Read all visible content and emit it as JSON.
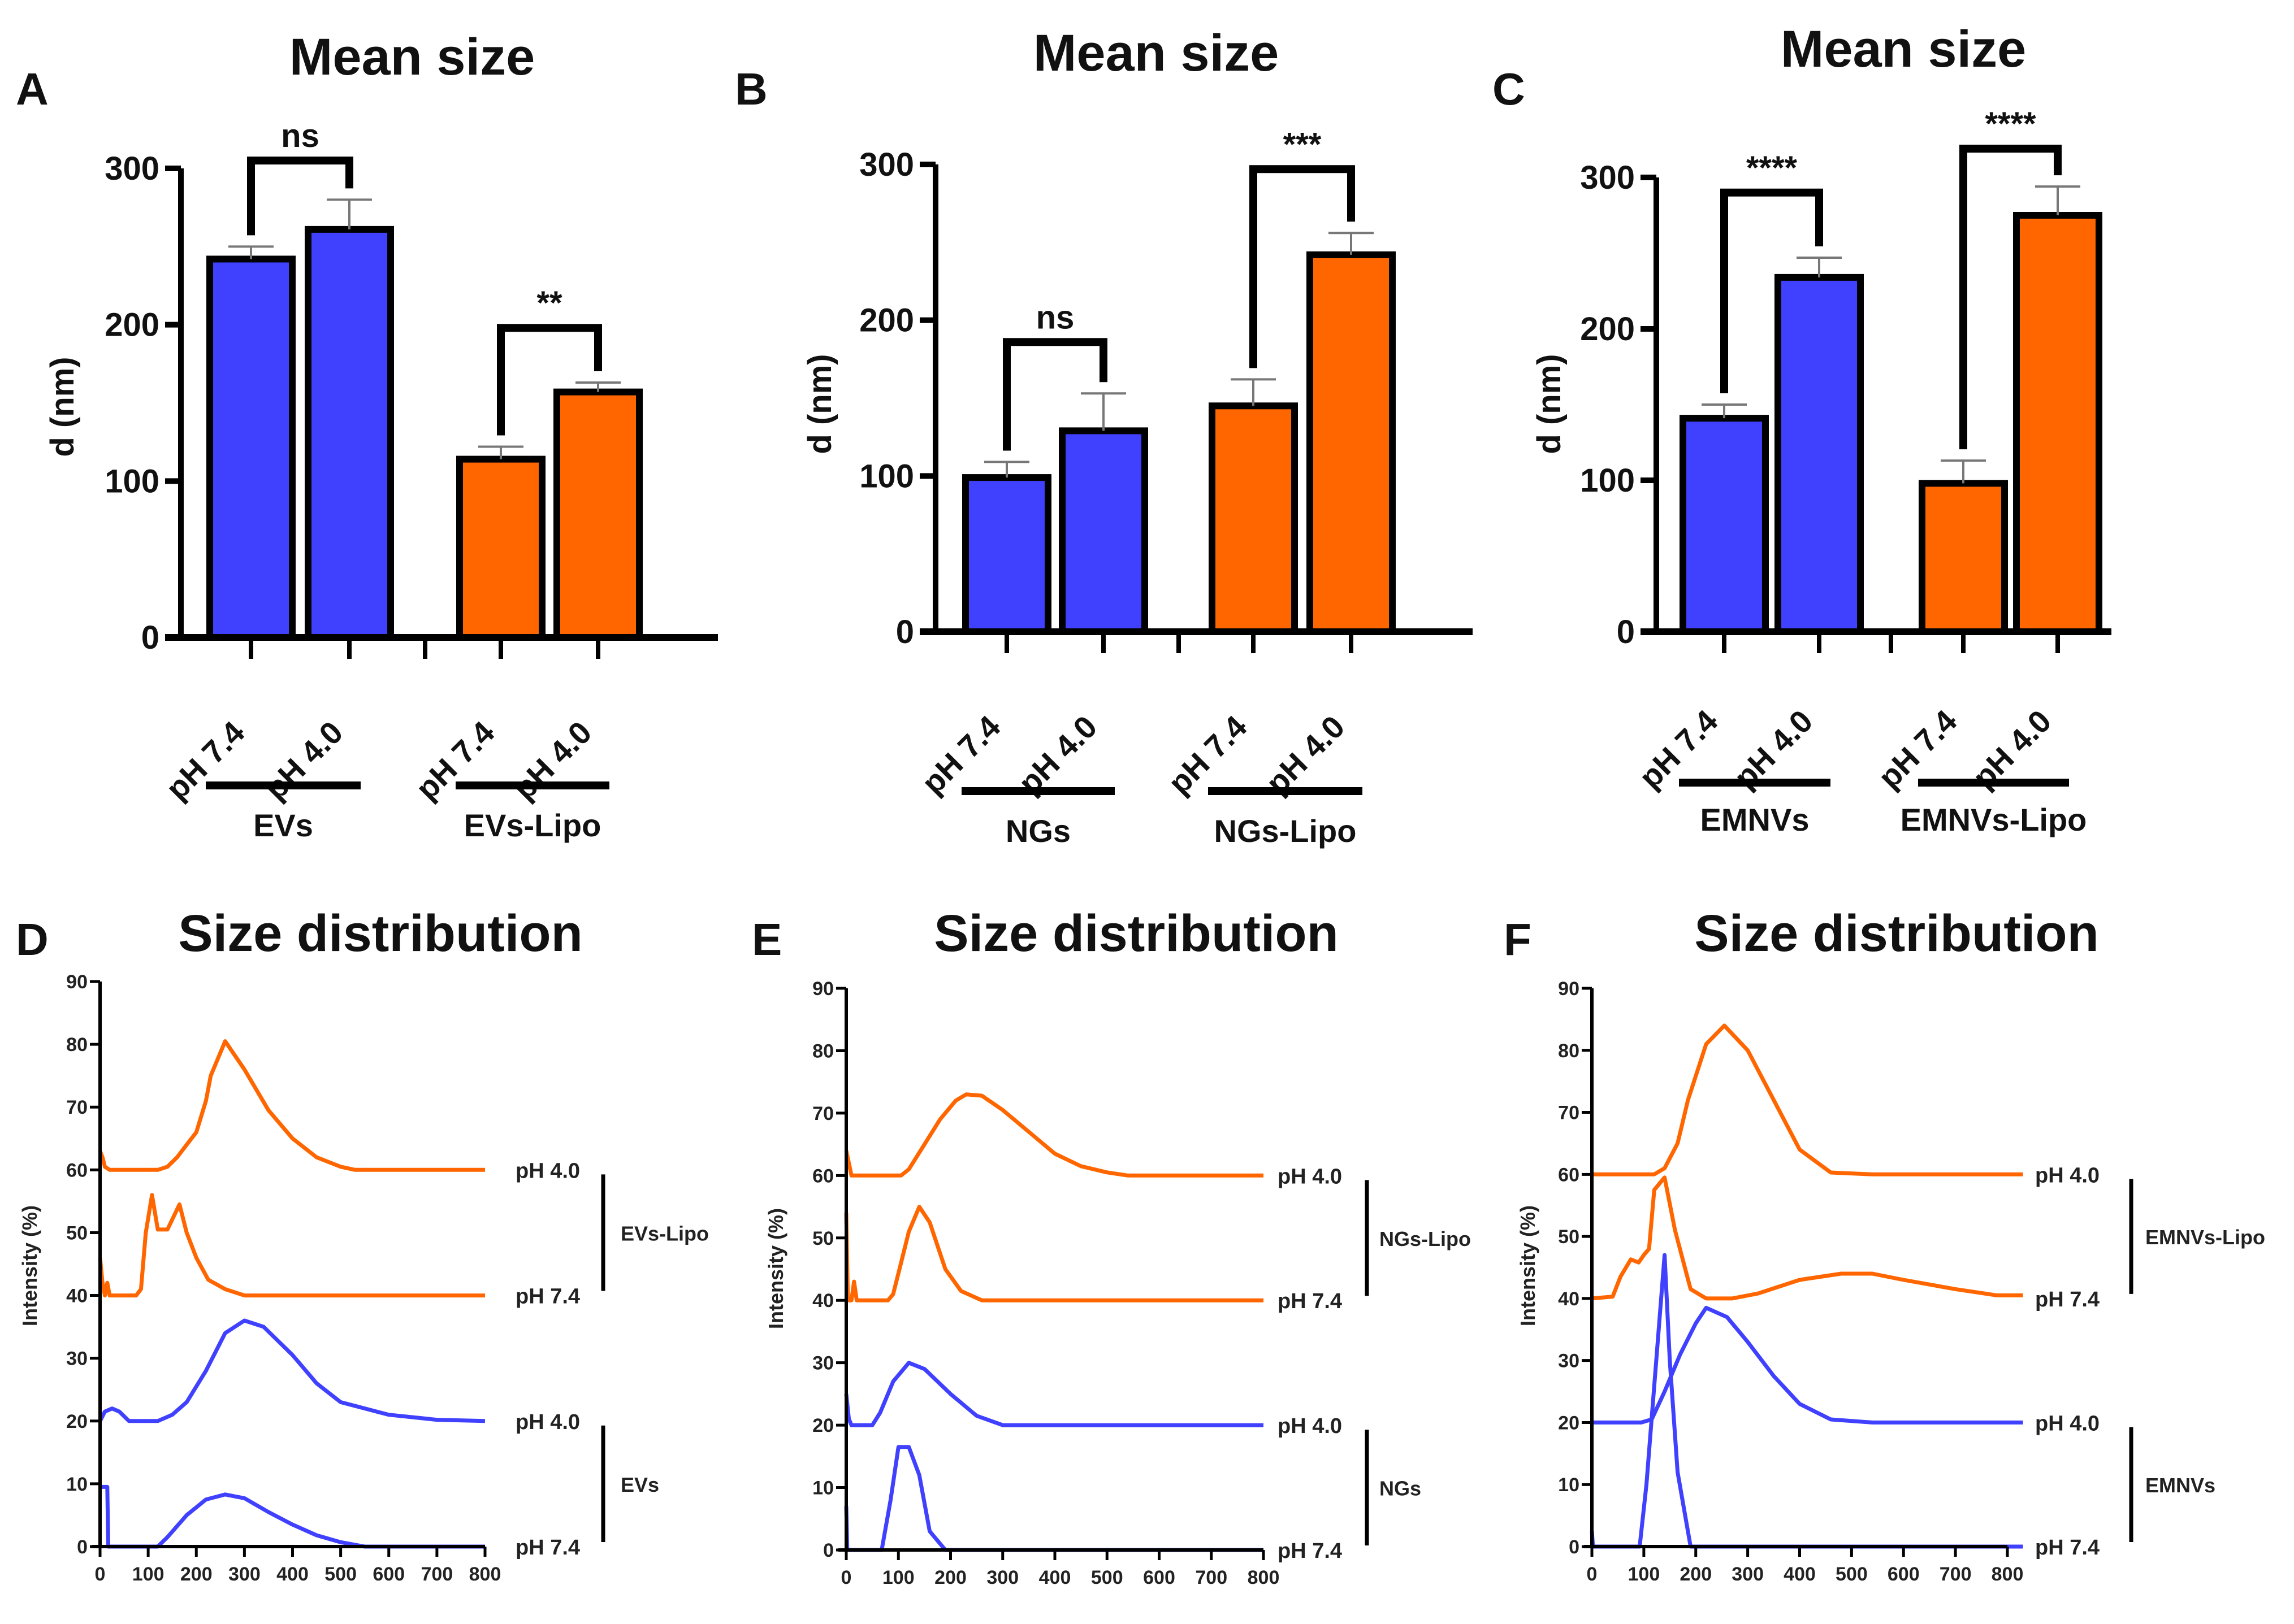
{
  "colors": {
    "blue": "#4040FF",
    "orange": "#FF6600",
    "axis": "#000000",
    "error": "#777777"
  },
  "chart_data": [
    {
      "panel": "A",
      "type": "bar",
      "title": "Mean size",
      "xlabel": "",
      "ylabel": "d (nm)",
      "ylim": [
        0,
        300
      ],
      "yticks": [
        0,
        100,
        200,
        300
      ],
      "categories": [
        "pH 7.4",
        "pH 4.0",
        "pH 7.4",
        "pH 4.0"
      ],
      "groups": [
        {
          "name": "EVs",
          "color": "blue",
          "bars": [
            {
              "label": "pH 7.4",
              "value": 242,
              "error": 8
            },
            {
              "label": "pH 4.0",
              "value": 261,
              "error": 19
            }
          ],
          "significance": {
            "label": "ns",
            "level": 305
          }
        },
        {
          "name": "EVs-Lipo",
          "color": "orange",
          "bars": [
            {
              "label": "pH 7.4",
              "value": 114,
              "error": 8
            },
            {
              "label": "pH 4.0",
              "value": 157,
              "error": 6
            }
          ],
          "significance": {
            "label": "**",
            "level": 198
          }
        }
      ]
    },
    {
      "panel": "B",
      "type": "bar",
      "title": "Mean size",
      "xlabel": "",
      "ylabel": "d (nm)",
      "ylim": [
        0,
        300
      ],
      "yticks": [
        0,
        100,
        200,
        300
      ],
      "categories": [
        "pH 7.4",
        "pH 4.0",
        "pH 7.4",
        "pH 4.0"
      ],
      "groups": [
        {
          "name": "NGs",
          "color": "blue",
          "bars": [
            {
              "label": "pH 7.4",
              "value": 99,
              "error": 10
            },
            {
              "label": "pH 4.0",
              "value": 129,
              "error": 24
            }
          ],
          "significance": {
            "label": "ns",
            "level": 186
          }
        },
        {
          "name": "NGs-Lipo",
          "color": "orange",
          "bars": [
            {
              "label": "pH 7.4",
              "value": 145,
              "error": 17
            },
            {
              "label": "pH 4.0",
              "value": 242,
              "error": 14
            }
          ],
          "significance": {
            "label": "***",
            "level": 297
          }
        }
      ]
    },
    {
      "panel": "C",
      "type": "bar",
      "title": "Mean size",
      "xlabel": "",
      "ylabel": "d (nm)",
      "ylim": [
        0,
        300
      ],
      "yticks": [
        0,
        100,
        200,
        300
      ],
      "categories": [
        "pH 7.4",
        "pH 4.0",
        "pH 7.4",
        "pH 4.0"
      ],
      "groups": [
        {
          "name": "EMNVs",
          "color": "blue",
          "bars": [
            {
              "label": "pH 7.4",
              "value": 141,
              "error": 9
            },
            {
              "label": "pH 4.0",
              "value": 234,
              "error": 13
            }
          ],
          "significance": {
            "label": "****",
            "level": 290
          }
        },
        {
          "name": "EMNVs-Lipo",
          "color": "orange",
          "bars": [
            {
              "label": "pH 7.4",
              "value": 98,
              "error": 15
            },
            {
              "label": "pH 4.0",
              "value": 275,
              "error": 19
            }
          ],
          "significance": {
            "label": "****",
            "level": 319
          }
        }
      ]
    },
    {
      "panel": "D",
      "type": "line",
      "title": "Size distribution",
      "xlabel": "",
      "ylabel": "Intensity (%)",
      "xlim": [
        0,
        800
      ],
      "ylim": [
        0,
        90
      ],
      "xticks": [
        0,
        100,
        200,
        300,
        400,
        500,
        600,
        700,
        800
      ],
      "yticks": [
        0,
        10,
        20,
        30,
        40,
        50,
        60,
        70,
        80,
        90
      ],
      "groups": [
        {
          "name": "EVs-Lipo",
          "from": 60,
          "to": 40
        },
        {
          "name": "EVs",
          "from": 20,
          "to": 0
        }
      ],
      "series": [
        {
          "name": "EVs-Lipo pH 4.0",
          "label": "pH 4.0",
          "color": "orange",
          "baseline": 60,
          "x": [
            0,
            5,
            10,
            20,
            120,
            140,
            160,
            180,
            200,
            220,
            230,
            260,
            300,
            350,
            400,
            450,
            500,
            530,
            800
          ],
          "y": [
            63,
            62,
            60.5,
            60,
            60,
            60.5,
            62,
            64,
            66,
            71,
            75,
            80.5,
            76,
            69.5,
            65,
            62,
            60.5,
            60,
            60
          ]
        },
        {
          "name": "EVs-Lipo pH 7.4",
          "label": "pH 7.4",
          "color": "orange",
          "baseline": 40,
          "x": [
            0,
            5,
            10,
            15,
            20,
            75,
            85,
            95,
            108,
            120,
            140,
            165,
            180,
            200,
            225,
            260,
            300,
            800
          ],
          "y": [
            46,
            42,
            40,
            42,
            40,
            40,
            41,
            50,
            56,
            50.5,
            50.5,
            54.5,
            50,
            46,
            42.5,
            41,
            40,
            40
          ]
        },
        {
          "name": "EVs pH 4.0",
          "label": "pH 4.0",
          "color": "blue",
          "baseline": 20,
          "x": [
            0,
            10,
            25,
            40,
            60,
            120,
            150,
            180,
            220,
            260,
            300,
            340,
            400,
            450,
            500,
            600,
            700,
            800
          ],
          "y": [
            20,
            21.5,
            22,
            21.5,
            20,
            20,
            21,
            23,
            28,
            34,
            36,
            35,
            30.5,
            26,
            23,
            21,
            20.2,
            20
          ]
        },
        {
          "name": "EVs pH 7.4",
          "label": "pH 7.4",
          "color": "blue",
          "baseline": 0,
          "x": [
            0,
            5,
            15,
            17,
            120,
            140,
            180,
            220,
            260,
            300,
            350,
            400,
            450,
            500,
            550,
            800
          ],
          "y": [
            9.5,
            9.5,
            9.5,
            0,
            0,
            1.5,
            5,
            7.5,
            8.3,
            7.7,
            5.5,
            3.5,
            1.8,
            0.7,
            0,
            0
          ]
        }
      ]
    },
    {
      "panel": "E",
      "type": "line",
      "title": "Size distribution",
      "xlabel": "",
      "ylabel": "Intensity (%)",
      "xlim": [
        0,
        800
      ],
      "ylim": [
        0,
        90
      ],
      "xticks": [
        0,
        100,
        200,
        300,
        400,
        500,
        600,
        700,
        800
      ],
      "yticks": [
        0,
        10,
        20,
        30,
        40,
        50,
        60,
        70,
        80,
        90
      ],
      "groups": [
        {
          "name": "NGs-Lipo",
          "from": 60,
          "to": 40
        },
        {
          "name": "NGs",
          "from": 20,
          "to": 0
        }
      ],
      "series": [
        {
          "name": "NGs-Lipo pH 4.0",
          "label": "pH 4.0",
          "color": "orange",
          "baseline": 60,
          "x": [
            0,
            5,
            10,
            105,
            120,
            150,
            180,
            210,
            230,
            260,
            300,
            350,
            400,
            450,
            500,
            540,
            800
          ],
          "y": [
            64,
            62,
            60,
            60,
            61,
            65,
            69,
            72,
            73,
            72.8,
            70.5,
            67,
            63.5,
            61.5,
            60.5,
            60,
            60
          ]
        },
        {
          "name": "NGs-Lipo pH 7.4",
          "label": "pH 7.4",
          "color": "orange",
          "baseline": 40,
          "x": [
            0,
            3,
            10,
            15,
            20,
            80,
            90,
            105,
            120,
            140,
            160,
            190,
            220,
            260,
            800
          ],
          "y": [
            54,
            40,
            40,
            43,
            40,
            40,
            41,
            46,
            51,
            55,
            52.5,
            45,
            41.5,
            40,
            40
          ]
        },
        {
          "name": "NGs pH 4.0",
          "label": "pH 4.0",
          "color": "blue",
          "baseline": 20,
          "x": [
            0,
            5,
            10,
            50,
            65,
            90,
            120,
            150,
            200,
            250,
            300,
            800
          ],
          "y": [
            25,
            21,
            20,
            20,
            22,
            27,
            30,
            29,
            25,
            21.5,
            20,
            20
          ]
        },
        {
          "name": "NGs pH 7.4",
          "label": "pH 7.4",
          "color": "blue",
          "baseline": 0,
          "x": [
            0,
            2,
            68,
            85,
            100,
            120,
            140,
            160,
            190,
            800
          ],
          "y": [
            7,
            0,
            0,
            8,
            16.5,
            16.5,
            12,
            3,
            0,
            0
          ]
        }
      ]
    },
    {
      "panel": "F",
      "type": "line",
      "title": "Size distribution",
      "xlabel": "",
      "ylabel": "Intensity (%)",
      "xlim": [
        0,
        800
      ],
      "ylim": [
        0,
        90
      ],
      "xticks": [
        0,
        100,
        200,
        300,
        400,
        500,
        600,
        700,
        800
      ],
      "yticks": [
        0,
        10,
        20,
        30,
        40,
        50,
        60,
        70,
        80,
        90
      ],
      "groups": [
        {
          "name": "EMNVs-Lipo",
          "from": 60,
          "to": 40
        },
        {
          "name": "EMNVs",
          "from": 20,
          "to": 0
        }
      ],
      "series": [
        {
          "name": "EMNVs-Lipo pH 4.0",
          "label": "pH 4.0",
          "color": "orange",
          "baseline": 60,
          "x": [
            0,
            120,
            140,
            165,
            185,
            220,
            255,
            300,
            350,
            400,
            460,
            540,
            830
          ],
          "y": [
            60,
            60,
            61,
            65,
            72,
            81,
            84,
            80,
            72,
            64,
            60.3,
            60,
            60
          ]
        },
        {
          "name": "EMNVs-Lipo pH 7.4",
          "label": "pH 7.4",
          "color": "orange",
          "baseline": 40,
          "x": [
            0,
            40,
            55,
            75,
            90,
            100,
            110,
            120,
            140,
            160,
            190,
            220,
            270,
            320,
            400,
            480,
            540,
            600,
            700,
            780,
            830
          ],
          "y": [
            40,
            40.3,
            43.5,
            46.3,
            45.8,
            47,
            48,
            57.5,
            59.5,
            51,
            41.5,
            40,
            40,
            40.8,
            43,
            44,
            44,
            43,
            41.5,
            40.5,
            40.5
          ]
        },
        {
          "name": "EMNVs pH 4.0",
          "label": "pH 4.0",
          "color": "blue",
          "baseline": 20,
          "x": [
            0,
            95,
            115,
            140,
            170,
            200,
            220,
            260,
            300,
            350,
            400,
            460,
            540,
            830
          ],
          "y": [
            20,
            20,
            20.5,
            25,
            31,
            36,
            38.5,
            37,
            33,
            27.5,
            23,
            20.5,
            20,
            20
          ]
        },
        {
          "name": "EMNVs pH 7.4",
          "label": "pH 7.4",
          "color": "blue",
          "baseline": 0,
          "x": [
            0,
            2,
            92,
            105,
            140,
            150,
            165,
            190,
            800,
            830
          ],
          "y": [
            2.5,
            0,
            0,
            10,
            47,
            30,
            12,
            0,
            0,
            0
          ]
        }
      ]
    }
  ]
}
